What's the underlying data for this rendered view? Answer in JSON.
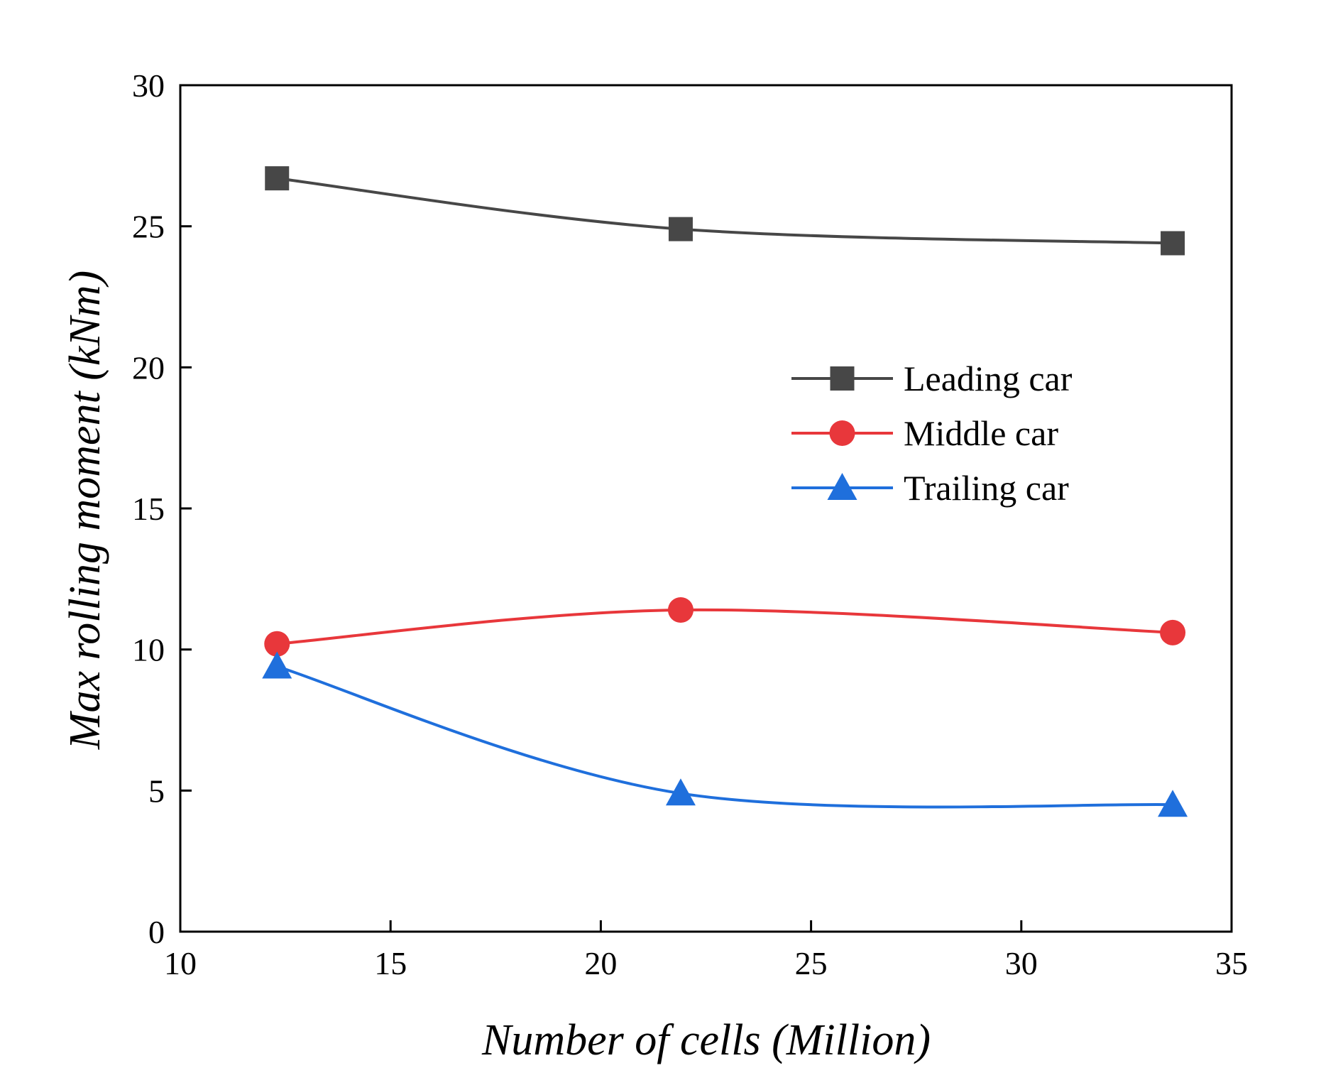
{
  "chart_data": {
    "type": "line",
    "title": "",
    "xlabel": "Number of cells (Million)",
    "ylabel": "Max rolling moment (kNm)",
    "xlim": [
      10,
      35
    ],
    "ylim": [
      0,
      30
    ],
    "xticks": [
      10,
      15,
      20,
      25,
      30,
      35
    ],
    "yticks": [
      0,
      5,
      10,
      15,
      20,
      25,
      30
    ],
    "grid": false,
    "legend_position": "right-middle",
    "x": [
      12.3,
      21.9,
      33.6
    ],
    "series": [
      {
        "name": "Leading car",
        "values": [
          26.7,
          24.9,
          24.4
        ],
        "color": "#474747",
        "marker": "square"
      },
      {
        "name": "Middle car",
        "values": [
          10.2,
          11.4,
          10.6
        ],
        "color": "#e8373b",
        "marker": "circle"
      },
      {
        "name": "Trailing car",
        "values": [
          9.4,
          4.9,
          4.5
        ],
        "color": "#1f6fdc",
        "marker": "triangle"
      }
    ]
  }
}
